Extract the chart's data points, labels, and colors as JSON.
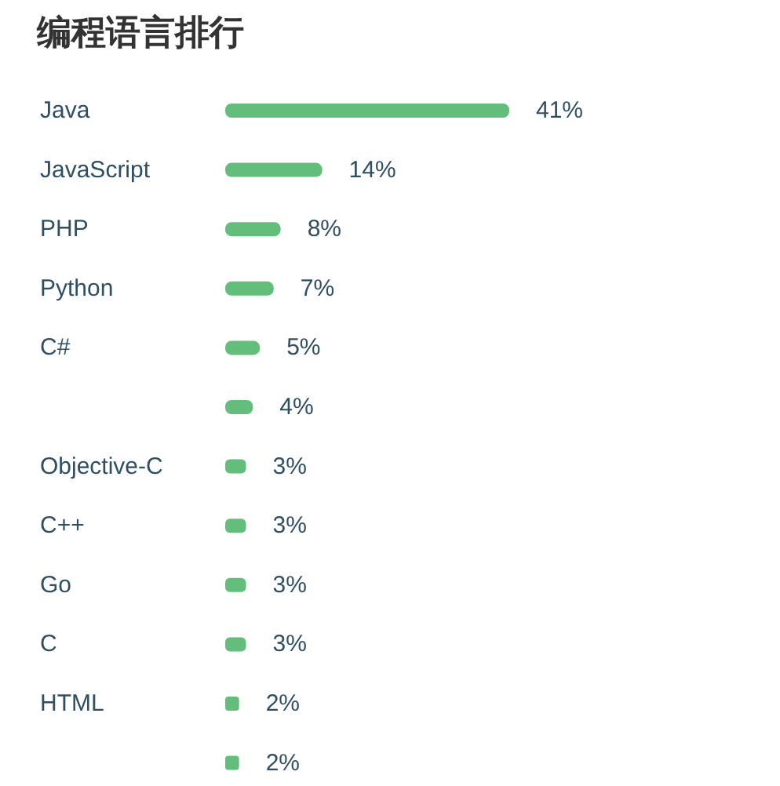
{
  "chart_data": {
    "type": "bar",
    "orientation": "horizontal",
    "title": "编程语言排行",
    "categories": [
      "Java",
      "JavaScript",
      "PHP",
      "Python",
      "C#",
      null,
      "Objective-C",
      "C++",
      "Go",
      "C",
      "HTML",
      null
    ],
    "values": [
      41,
      14,
      8,
      7,
      5,
      4,
      3,
      3,
      3,
      3,
      2,
      2
    ],
    "value_labels": [
      "41%",
      "14%",
      "8%",
      "7%",
      "5%",
      "4%",
      "3%",
      "3%",
      "3%",
      "3%",
      "2%",
      "2%"
    ],
    "color": "#63be7b"
  }
}
